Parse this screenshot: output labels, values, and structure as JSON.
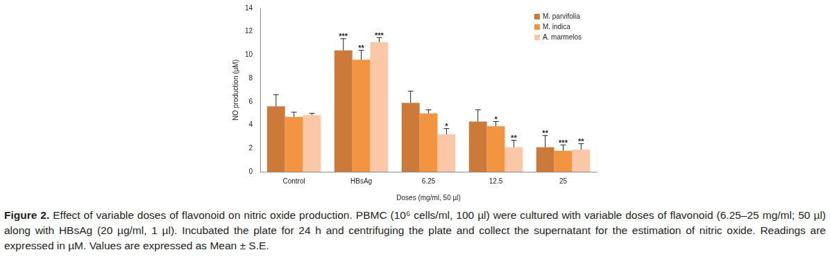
{
  "chart_data": {
    "type": "bar",
    "y_label": "NO production (µM)",
    "x_label": "Doses (mg/ml, 50 µl)",
    "categories": [
      "Control",
      "HBsAg",
      "6.25",
      "12.5",
      "25"
    ],
    "series": [
      {
        "name": "M. parvifolia",
        "color": "#cc7a3a",
        "values": [
          5.6,
          10.4,
          5.9,
          4.3,
          2.1
        ],
        "errors": [
          1.0,
          1.0,
          1.0,
          1.0,
          1.0
        ],
        "significance": [
          null,
          "***",
          null,
          null,
          "**"
        ]
      },
      {
        "name": "M. indica",
        "color": "#f39440",
        "values": [
          4.7,
          9.6,
          5.0,
          3.9,
          1.8
        ],
        "errors": [
          0.4,
          0.8,
          0.3,
          0.4,
          0.5
        ],
        "significance": [
          null,
          "**",
          null,
          "*",
          "***"
        ]
      },
      {
        "name": "A. marmelos",
        "color": "#fac8a6",
        "values": [
          4.85,
          11.1,
          3.2,
          2.1,
          1.9
        ],
        "errors": [
          0.15,
          0.4,
          0.5,
          0.6,
          0.5
        ],
        "significance": [
          null,
          "***",
          "*",
          "**",
          "**"
        ]
      }
    ],
    "ylim": [
      0,
      14
    ],
    "yticks": [
      0,
      2,
      4,
      6,
      8,
      10,
      12,
      14
    ],
    "grid": false,
    "legend": "top-right",
    "caption": {
      "label": "Figure 2.",
      "text": "Effect of variable doses of flavonoid on nitric oxide production. PBMC (10⁶ cells/ml, 100 µl) were cultured with variable doses of flavonoid (6.25–25 mg/ml; 50 µl) along with HBsAg (20 µg/ml, 1 µl). Incubated the plate for 24 h and centrifuging the plate and collect the supernatant for the estimation of nitric oxide. Readings are expressed in µM. Values are expressed as Mean ± S.E."
    }
  }
}
